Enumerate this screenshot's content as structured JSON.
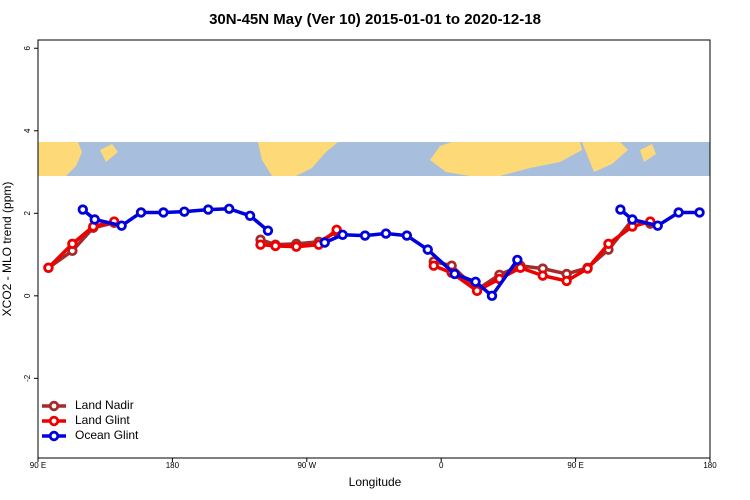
{
  "chart_data": {
    "type": "line",
    "title": "30N-45N May (Ver 10)   2015-01-01 to 2020-12-18",
    "xlabel": "Longitude",
    "ylabel": "XCO2 - MLO trend (ppm)",
    "xlim": [
      90,
      540
    ],
    "xticks": [
      {
        "value": 90,
        "label": "90 E"
      },
      180,
      {
        "value": 270,
        "label": "90 W"
      },
      {
        "value": 360,
        "label": "0"
      },
      {
        "value": 450,
        "label": "90 E"
      },
      {
        "value": 540,
        "label": "180"
      }
    ],
    "ylim": [
      -3.93,
      6.2
    ],
    "yticks": [
      -2,
      0,
      2,
      4,
      6
    ],
    "legend": "lower left",
    "series": [
      {
        "name": "Land Nadir",
        "color": "#a52a2a",
        "x": [
          97,
          113,
          127,
          141,
          null,
          239,
          249,
          263,
          278,
          290,
          null,
          355,
          367,
          384,
          399,
          413,
          428,
          444,
          458,
          472,
          488,
          500
        ],
        "values": [
          0.68,
          1.09,
          1.65,
          1.77,
          null,
          1.36,
          1.24,
          1.26,
          1.31,
          1.55,
          null,
          0.83,
          0.73,
          0.15,
          0.51,
          0.73,
          0.66,
          0.53,
          0.68,
          1.12,
          1.84,
          1.75
        ]
      },
      {
        "name": "Land Glint",
        "color": "#ee0000",
        "x": [
          97,
          113,
          127,
          141,
          null,
          239,
          249,
          263,
          278,
          290,
          null,
          355,
          367,
          384,
          399,
          413,
          428,
          444,
          458,
          472,
          488,
          500
        ],
        "values": [
          0.68,
          1.26,
          1.68,
          1.8,
          null,
          1.24,
          1.21,
          1.19,
          1.24,
          1.6,
          null,
          0.73,
          0.56,
          0.12,
          0.41,
          0.68,
          0.49,
          0.36,
          0.66,
          1.26,
          1.68,
          1.8
        ]
      },
      {
        "name": "Ocean Glint",
        "color": "#0000dd",
        "x": [
          120,
          128,
          146,
          159,
          174,
          188,
          204,
          218,
          232,
          244,
          null,
          282,
          294,
          309,
          323,
          337,
          351,
          369,
          383,
          394,
          411,
          null,
          480,
          488,
          505,
          519,
          533
        ],
        "values": [
          2.09,
          1.85,
          1.7,
          2.02,
          2.02,
          2.04,
          2.09,
          2.11,
          1.94,
          1.58,
          null,
          1.29,
          1.48,
          1.46,
          1.51,
          1.46,
          1.12,
          0.53,
          0.34,
          0,
          0.87,
          null,
          2.09,
          1.85,
          1.7,
          2.02,
          2.02
        ]
      }
    ]
  }
}
